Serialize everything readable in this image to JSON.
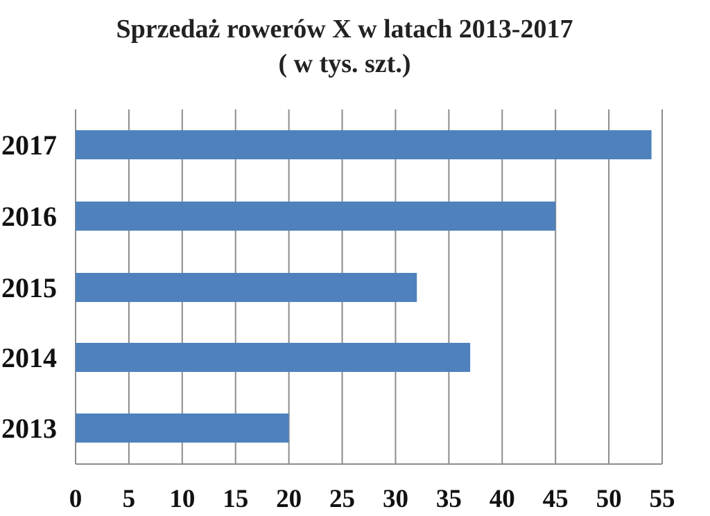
{
  "chart_data": {
    "type": "bar",
    "orientation": "horizontal",
    "title": "Sprzedaż rowerów X w latach 2013-2017",
    "subtitle": "( w tys. szt.)",
    "categories": [
      "2013",
      "2014",
      "2015",
      "2016",
      "2017"
    ],
    "values": [
      20,
      37,
      32,
      45,
      54
    ],
    "xlim": [
      0,
      55
    ],
    "x_ticks": [
      "0",
      "5",
      "10",
      "15",
      "20",
      "25",
      "30",
      "35",
      "40",
      "45",
      "50",
      "55"
    ],
    "grid": "vertical",
    "legend": "none",
    "bar_color": "#4f81bd",
    "grid_color": "#8c8c8c"
  }
}
